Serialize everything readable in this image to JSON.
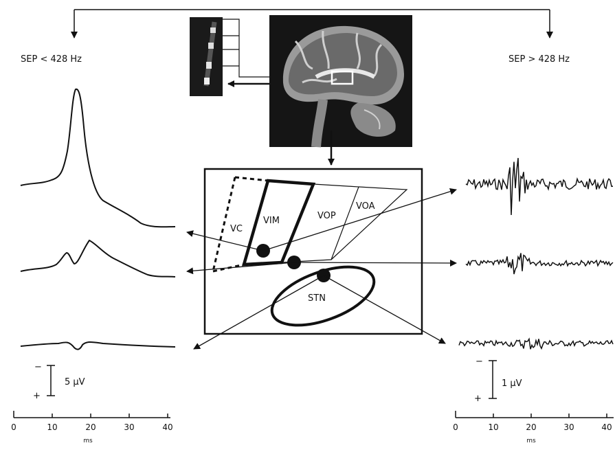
{
  "left_panel": {
    "title": "SEP < 428 Hz",
    "scale_label": "5 µV",
    "polarity_minus": "−",
    "polarity_plus": "+",
    "axis_ticks": [
      "0",
      "10",
      "20",
      "30",
      "40"
    ],
    "axis_unit": "ms"
  },
  "right_panel": {
    "title": "SEP > 428 Hz",
    "scale_label": "1 µV",
    "polarity_minus": "−",
    "polarity_plus": "+",
    "axis_ticks": [
      "0",
      "10",
      "20",
      "30",
      "40"
    ],
    "axis_unit": "ms"
  },
  "schematic": {
    "labels": {
      "vc": "VC",
      "vim": "VIM",
      "vop": "VOP",
      "voa": "VOA",
      "stn": "STN"
    }
  },
  "colors": {
    "ink": "#111111",
    "background": "#ffffff",
    "mri_background": "#151515"
  }
}
